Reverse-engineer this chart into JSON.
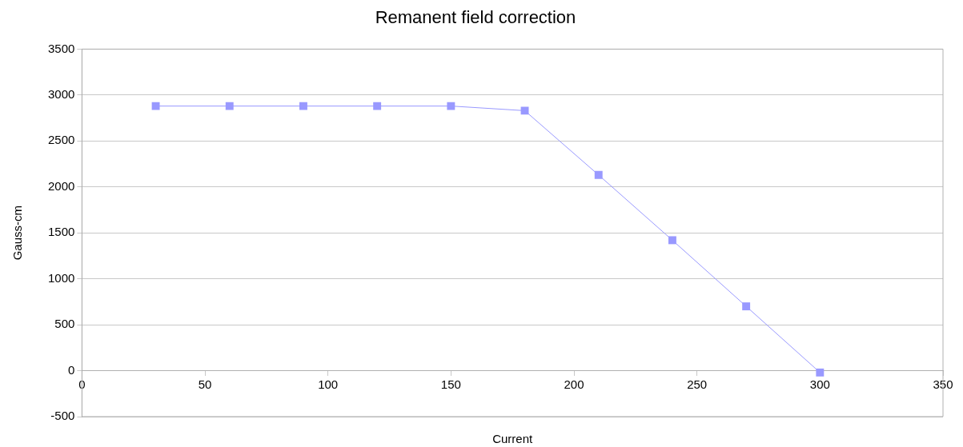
{
  "chart_data": {
    "type": "line",
    "title": "Remanent field correction",
    "xlabel": "Current",
    "ylabel": "Gauss-cm",
    "x": [
      30,
      60,
      90,
      120,
      150,
      180,
      210,
      240,
      270,
      300
    ],
    "series": [
      {
        "color": "#9999ff",
        "values": [
          2880,
          2880,
          2880,
          2880,
          2880,
          2830,
          2130,
          1420,
          700,
          -20
        ]
      }
    ],
    "xlim": [
      0,
      350
    ],
    "xticks": [
      0,
      50,
      100,
      150,
      200,
      250,
      300,
      350
    ],
    "ylim": [
      -500,
      3500
    ],
    "yticks": [
      -500,
      0,
      500,
      1000,
      1500,
      2000,
      2500,
      3000,
      3500
    ],
    "grid": "y",
    "legend": false,
    "marker": "square",
    "line_style": "solid"
  }
}
